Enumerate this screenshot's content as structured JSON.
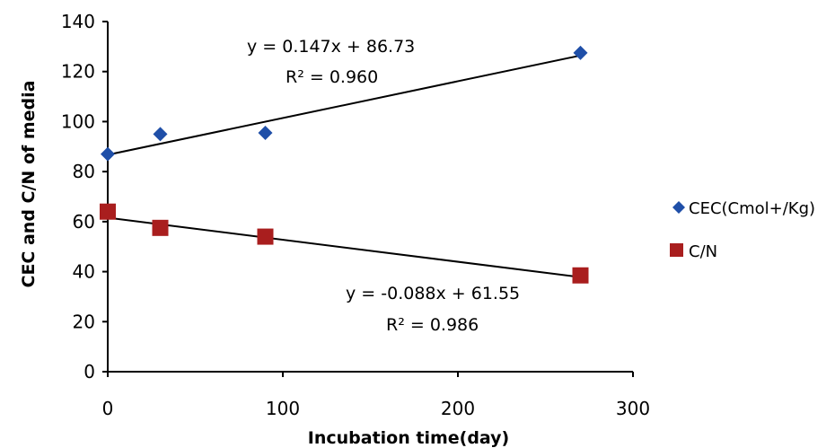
{
  "chart_data": {
    "type": "scatter",
    "xlabel": "Incubation time(day)",
    "ylabel": "CEC and C/N of media",
    "xlim": [
      0,
      300
    ],
    "ylim": [
      0,
      140
    ],
    "xticks": [
      0,
      100,
      200,
      300
    ],
    "yticks": [
      0,
      20,
      40,
      60,
      80,
      100,
      120,
      140
    ],
    "grid": false,
    "legend_position": "right",
    "series": [
      {
        "name": "CEC(Cmol+/Kg)",
        "marker": "diamond",
        "color": "#1f4fa8",
        "x": [
          0,
          30,
          90,
          270
        ],
        "y": [
          87,
          95,
          95.5,
          127.5
        ],
        "trendline": {
          "slope": 0.147,
          "intercept": 86.73,
          "equation": "y = 0.147x + 86.73",
          "r2_label": "R² = 0.960"
        }
      },
      {
        "name": "C/N",
        "marker": "square",
        "color": "#a91e1e",
        "x": [
          0,
          30,
          90,
          270
        ],
        "y": [
          64,
          57.5,
          54,
          38.5
        ],
        "trendline": {
          "slope": -0.088,
          "intercept": 61.55,
          "equation": "y = -0.088x + 61.55",
          "r2_label": "R² = 0.986"
        }
      }
    ]
  }
}
